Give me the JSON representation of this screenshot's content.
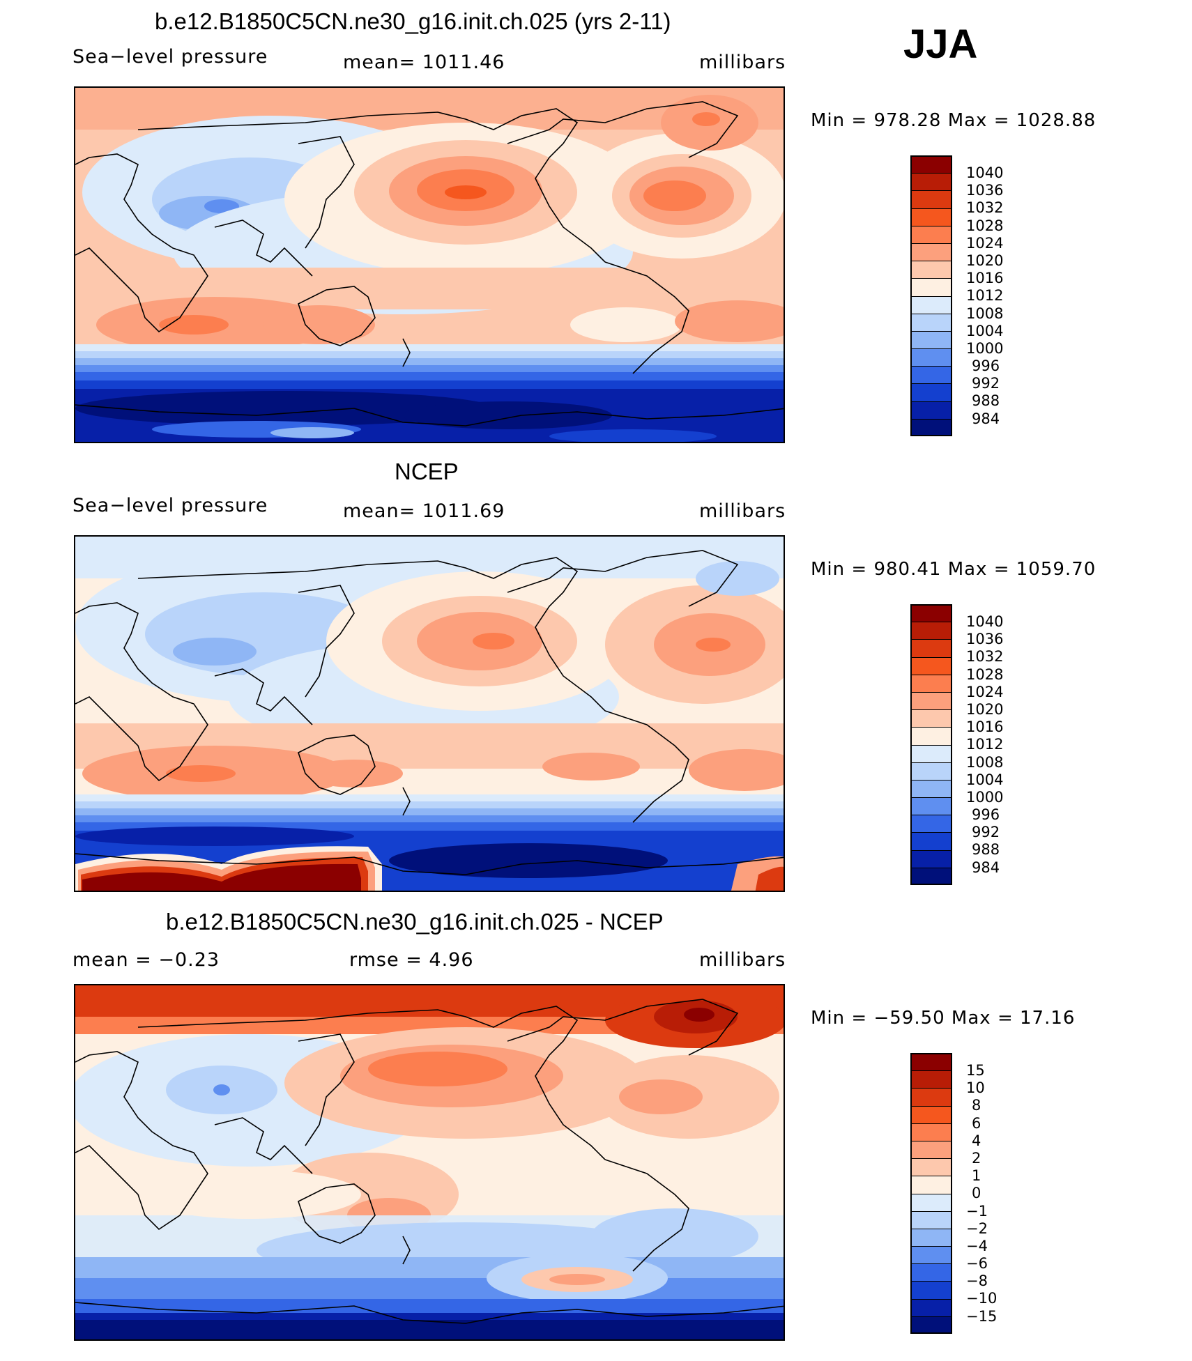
{
  "header": {
    "season": "JJA"
  },
  "panels": [
    {
      "title": "b.e12.B1850C5CN.ne30_g16.init.ch.025 (yrs 2-11)",
      "left_label": "Sea−level pressure",
      "center_label": "mean=  1011.46",
      "right_label": "millibars",
      "stats": "Min  =  978.28  Max  =  1028.88"
    },
    {
      "title": "NCEP",
      "left_label": "Sea−level pressure",
      "center_label": "mean=  1011.69",
      "right_label": "millibars",
      "stats": "Min  =  980.41  Max  =  1059.70"
    },
    {
      "title": "b.e12.B1850C5CN.ne30_g16.init.ch.025 - NCEP",
      "left_label": "mean  =    −0.23",
      "center_label": "rmse  =     4.96",
      "right_label": "millibars",
      "stats": "Min  =  −59.50  Max  =    17.16"
    }
  ],
  "chart_data": [
    {
      "type": "heatmap",
      "title": "b.e12.B1850C5CN.ne30_g16.init.ch.025 (yrs 2-11)",
      "variable": "Sea−level pressure",
      "units": "millibars",
      "mean": 1011.46,
      "min": 978.28,
      "max": 1028.88,
      "colorbar_levels": [
        "1040",
        "1036",
        "1032",
        "1028",
        "1024",
        "1020",
        "1016",
        "1012",
        "1008",
        "1004",
        "1000",
        "996",
        "992",
        "988",
        "984"
      ]
    },
    {
      "type": "heatmap",
      "title": "NCEP",
      "variable": "Sea−level pressure",
      "units": "millibars",
      "mean": 1011.69,
      "min": 980.41,
      "max": 1059.7,
      "colorbar_levels": [
        "1040",
        "1036",
        "1032",
        "1028",
        "1024",
        "1020",
        "1016",
        "1012",
        "1008",
        "1004",
        "1000",
        "996",
        "992",
        "988",
        "984"
      ]
    },
    {
      "type": "heatmap",
      "title": "b.e12.B1850C5CN.ne30_g16.init.ch.025 - NCEP",
      "units": "millibars",
      "mean": -0.23,
      "rmse": 4.96,
      "min": -59.5,
      "max": 17.16,
      "colorbar_levels": [
        "15",
        "10",
        "8",
        "6",
        "4",
        "2",
        "1",
        "0",
        "−1",
        "−2",
        "−4",
        "−6",
        "−8",
        "−10",
        "−15"
      ]
    }
  ],
  "colors": {
    "abs_scale": [
      "#8b0000",
      "#b81d06",
      "#dc3a10",
      "#f5571e",
      "#fc7e4f",
      "#fca07d",
      "#fdc8ad",
      "#fef0e2",
      "#dcebfb",
      "#b9d4fa",
      "#8fb6f5",
      "#5f8ff0",
      "#3466e6",
      "#1440cf",
      "#0720a8",
      "#00107a"
    ],
    "diff_scale": [
      "#8b0000",
      "#b81d06",
      "#dc3a10",
      "#f5571e",
      "#fc7e4f",
      "#fca07d",
      "#fdc8ad",
      "#fef0e2",
      "#dcebfb",
      "#b9d4fa",
      "#8fb6f5",
      "#5f8ff0",
      "#3466e6",
      "#1440cf",
      "#0720a8",
      "#00107a"
    ]
  }
}
